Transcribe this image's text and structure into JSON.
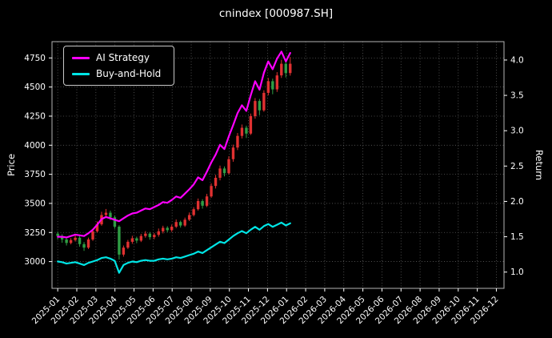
{
  "title": "cnindex [000987.SH]",
  "chart_data": {
    "type": "candlestick+line",
    "title": "cnindex [000987.SH]",
    "ylabel_left": "Price",
    "ylabel_right": "Return",
    "background": "#000000",
    "text_color": "#ffffff",
    "grid": {
      "on": true,
      "color": "#5c5c5c",
      "style": "dotted"
    },
    "legend_position": "upper-left",
    "x_unit": "months since 2025-01",
    "xlim_months": [
      -0.3,
      23.4
    ],
    "x_tick_labels": [
      "2025-01",
      "2025-02",
      "2025-03",
      "2025-04",
      "2025-05",
      "2025-06",
      "2025-07",
      "2025-08",
      "2025-09",
      "2025-10",
      "2025-11",
      "2025-12",
      "2026-01",
      "2026-02",
      "2026-03",
      "2026-04",
      "2026-05",
      "2026-06",
      "2026-07",
      "2026-08",
      "2026-09",
      "2026-10",
      "2026-11",
      "2026-12"
    ],
    "ylim_left": [
      2770,
      4890
    ],
    "yticks_left": [
      3000,
      3250,
      3500,
      3750,
      4000,
      4250,
      4500,
      4750
    ],
    "ylim_right": [
      0.77,
      4.26
    ],
    "yticks_right": [
      1.0,
      1.5,
      2.0,
      2.5,
      3.0,
      3.5,
      4.0
    ],
    "candle_up_color": "#e03131",
    "candle_down_color": "#2f9e44",
    "x_months": [
      0,
      0.23,
      0.46,
      0.69,
      0.92,
      1.15,
      1.38,
      1.61,
      1.84,
      2.07,
      2.3,
      2.53,
      2.76,
      2.99,
      3.22,
      3.45,
      3.68,
      3.91,
      4.14,
      4.37,
      4.6,
      4.83,
      5.06,
      5.29,
      5.52,
      5.75,
      5.98,
      6.21,
      6.44,
      6.67,
      6.9,
      7.13,
      7.36,
      7.59,
      7.82,
      8.05,
      8.28,
      8.51,
      8.74,
      8.97,
      9.2,
      9.43,
      9.66,
      9.89,
      10.12,
      10.35,
      10.58,
      10.81,
      11.04,
      11.27,
      11.5,
      11.73,
      11.96,
      12.19
    ],
    "candles": {
      "open": [
        3240,
        3220,
        3190,
        3160,
        3185,
        3205,
        3150,
        3120,
        3190,
        3260,
        3320,
        3400,
        3420,
        3380,
        3300,
        3060,
        3120,
        3170,
        3200,
        3180,
        3220,
        3240,
        3210,
        3230,
        3260,
        3290,
        3270,
        3300,
        3340,
        3310,
        3360,
        3400,
        3450,
        3520,
        3480,
        3560,
        3650,
        3720,
        3800,
        3760,
        3880,
        3980,
        4080,
        4150,
        4100,
        4250,
        4380,
        4300,
        4450,
        4550,
        4480,
        4600,
        4700,
        4620
      ],
      "high": [
        3258,
        3235,
        3205,
        3202,
        3228,
        3218,
        3168,
        3206,
        3278,
        3345,
        3428,
        3452,
        3438,
        3396,
        3312,
        3138,
        3186,
        3222,
        3214,
        3238,
        3262,
        3254,
        3246,
        3284,
        3308,
        3304,
        3318,
        3362,
        3352,
        3378,
        3422,
        3468,
        3542,
        3536,
        3582,
        3672,
        3745,
        3825,
        3818,
        3905,
        4005,
        4105,
        4178,
        4168,
        4272,
        4405,
        4398,
        4472,
        4578,
        4572,
        4628,
        4735,
        4742,
        4758
      ],
      "low": [
        3188,
        3162,
        3138,
        3148,
        3172,
        3128,
        3092,
        3108,
        3178,
        3248,
        3308,
        3382,
        3358,
        3282,
        3018,
        3042,
        3108,
        3152,
        3158,
        3168,
        3205,
        3188,
        3192,
        3214,
        3242,
        3252,
        3255,
        3288,
        3292,
        3298,
        3348,
        3388,
        3438,
        3455,
        3468,
        3548,
        3628,
        3698,
        3732,
        3748,
        3858,
        3958,
        4058,
        4062,
        4088,
        4228,
        4258,
        4288,
        4428,
        4438,
        4458,
        4578,
        4582,
        4598
      ],
      "close": [
        3220,
        3190,
        3160,
        3185,
        3205,
        3150,
        3120,
        3190,
        3260,
        3320,
        3400,
        3420,
        3380,
        3300,
        3060,
        3120,
        3170,
        3200,
        3180,
        3220,
        3240,
        3210,
        3230,
        3260,
        3290,
        3270,
        3300,
        3340,
        3310,
        3360,
        3400,
        3450,
        3520,
        3480,
        3560,
        3650,
        3720,
        3800,
        3760,
        3880,
        3980,
        4080,
        4150,
        4100,
        4250,
        4380,
        4300,
        4450,
        4550,
        4480,
        4600,
        4700,
        4620,
        4700
      ]
    },
    "series": [
      {
        "name": "AI Strategy",
        "color": "#ff00ff",
        "axis": "right",
        "values": [
          1.5,
          1.5,
          1.49,
          1.51,
          1.53,
          1.52,
          1.51,
          1.55,
          1.6,
          1.67,
          1.75,
          1.78,
          1.76,
          1.74,
          1.72,
          1.76,
          1.8,
          1.83,
          1.84,
          1.87,
          1.9,
          1.89,
          1.92,
          1.95,
          1.99,
          1.98,
          2.02,
          2.07,
          2.05,
          2.11,
          2.17,
          2.24,
          2.34,
          2.3,
          2.42,
          2.55,
          2.66,
          2.8,
          2.74,
          2.92,
          3.08,
          3.25,
          3.36,
          3.28,
          3.5,
          3.7,
          3.58,
          3.82,
          3.98,
          3.87,
          4.02,
          4.12,
          3.98,
          4.1
        ]
      },
      {
        "name": "Buy-and-Hold",
        "color": "#00e5e5",
        "axis": "right",
        "values": [
          1.15,
          1.14,
          1.12,
          1.13,
          1.14,
          1.12,
          1.1,
          1.13,
          1.15,
          1.17,
          1.2,
          1.21,
          1.19,
          1.16,
          0.99,
          1.1,
          1.13,
          1.15,
          1.14,
          1.16,
          1.17,
          1.16,
          1.16,
          1.18,
          1.19,
          1.18,
          1.19,
          1.21,
          1.2,
          1.22,
          1.24,
          1.26,
          1.29,
          1.27,
          1.31,
          1.35,
          1.39,
          1.43,
          1.41,
          1.46,
          1.51,
          1.55,
          1.58,
          1.55,
          1.6,
          1.64,
          1.6,
          1.65,
          1.68,
          1.64,
          1.67,
          1.7,
          1.66,
          1.69
        ]
      }
    ]
  }
}
